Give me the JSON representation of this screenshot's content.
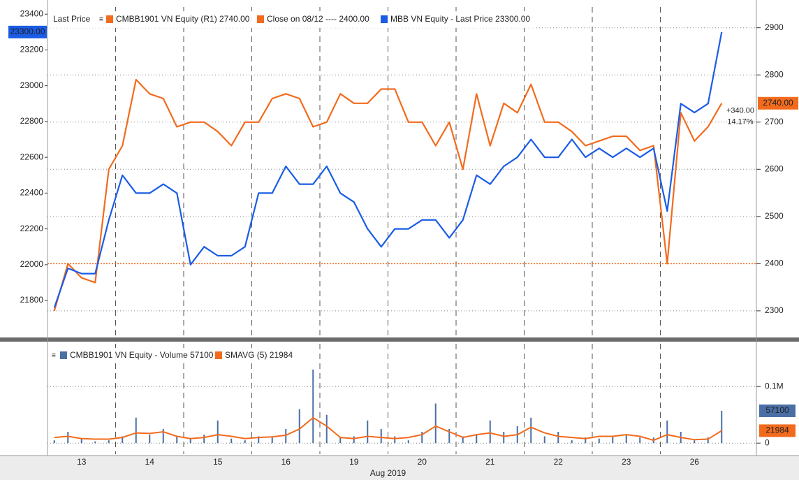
{
  "chart_data": [
    {
      "type": "line",
      "legend_prefix": "Last Price",
      "ylim": [
        21605,
        23440
      ],
      "yticks": [
        21800,
        22000,
        22200,
        22400,
        22600,
        22800,
        23000,
        23200,
        23400
      ],
      "y2lim": [
        2248,
        2944
      ],
      "y2ticks": [
        2300,
        2400,
        2500,
        2600,
        2700,
        2800,
        2900
      ],
      "grid": true,
      "x_tick_labels": [
        "13",
        "14",
        "15",
        "16",
        "19",
        "20",
        "21",
        "22",
        "23",
        "26"
      ],
      "x_axis_label": "Aug 2019",
      "series": [
        {
          "name": "CMBB1901 VN Equity  (R1) 2740.00",
          "color": "#f26b1d",
          "axis": "y2",
          "last_label": "2740.00",
          "values": [
            2300,
            2400,
            2370,
            2360,
            2600,
            2650,
            2790,
            2760,
            2750,
            2690,
            2700,
            2700,
            2680,
            2650,
            2700,
            2700,
            2750,
            2760,
            2750,
            2690,
            2700,
            2760,
            2740,
            2740,
            2770,
            2770,
            2700,
            2700,
            2650,
            2700,
            2600,
            2760,
            2650,
            2740,
            2720,
            2780,
            2700,
            2700,
            2680,
            2650,
            2660,
            2670,
            2670,
            2640,
            2650,
            2400,
            2720,
            2660,
            2690,
            2740
          ]
        },
        {
          "name": "MBB VN Equity - Last Price 23300.00",
          "color": "#1a5ce6",
          "last_label": "23300.00",
          "values": [
            21760,
            21980,
            21950,
            21950,
            22250,
            22500,
            22400,
            22400,
            22450,
            22400,
            22000,
            22100,
            22050,
            22050,
            22100,
            22400,
            22400,
            22550,
            22450,
            22450,
            22550,
            22400,
            22350,
            22200,
            22100,
            22200,
            22200,
            22250,
            22250,
            22150,
            22250,
            22500,
            22450,
            22550,
            22600,
            22700,
            22600,
            22600,
            22700,
            22600,
            22650,
            22600,
            22650,
            22600,
            22650,
            22300,
            22900,
            22850,
            22900,
            23300
          ]
        }
      ],
      "reference_line": {
        "name": "Close on 08/12 ---- 2400.00",
        "value": 2400,
        "color": "#f26b1d",
        "axis": "y2"
      },
      "annotations": [
        "+340.00",
        "14.17%"
      ]
    },
    {
      "type": "bar",
      "ylim": [
        -19500,
        175600
      ],
      "yticks": [
        0,
        {
          "value": 100000,
          "label": "0.1M"
        }
      ],
      "grid": true,
      "series": [
        {
          "name": "CMBB1901 VN Equity - Volume 57100",
          "color": "#4a6fa5",
          "type": "bar",
          "last_label": "57100",
          "values": [
            5000,
            20000,
            8000,
            3000,
            5000,
            12000,
            45000,
            15000,
            25000,
            12000,
            8000,
            15000,
            40000,
            8000,
            5000,
            12000,
            10000,
            25000,
            60000,
            130000,
            50000,
            10000,
            12000,
            40000,
            25000,
            12000,
            5000,
            20000,
            70000,
            25000,
            12000,
            15000,
            40000,
            20000,
            30000,
            45000,
            12000,
            20000,
            5000,
            10000,
            8000,
            12000,
            15000,
            10000,
            10000,
            40000,
            20000,
            5000,
            10000,
            57100
          ]
        },
        {
          "name": "SMAVG (5) 21984",
          "color": "#f26b1d",
          "type": "line",
          "last_label": "21984",
          "values": [
            10000,
            12000,
            8000,
            7000,
            7000,
            10000,
            18000,
            17000,
            20000,
            12000,
            8000,
            10000,
            15000,
            12000,
            8000,
            10000,
            11000,
            14000,
            25000,
            45000,
            30000,
            10000,
            8000,
            12000,
            10000,
            8000,
            10000,
            15000,
            30000,
            20000,
            10000,
            15000,
            18000,
            12000,
            15000,
            28000,
            18000,
            12000,
            10000,
            8000,
            12000,
            12000,
            15000,
            12000,
            5000,
            15000,
            10000,
            6000,
            7000,
            21984
          ]
        }
      ]
    }
  ]
}
